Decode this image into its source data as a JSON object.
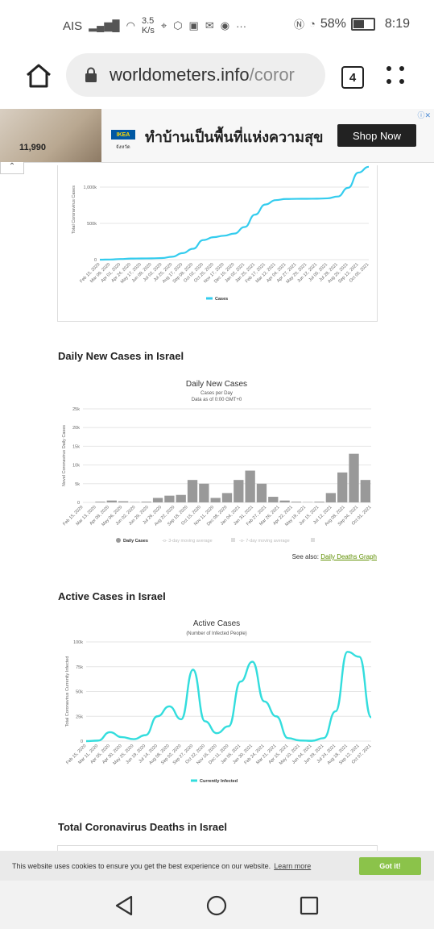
{
  "status_bar": {
    "carrier": "AIS",
    "net_speed": "3.5",
    "net_unit": "K/s",
    "battery": "58%",
    "time": "8:19"
  },
  "browser": {
    "url_host": "worldometers.info",
    "url_rest": "/coror",
    "tab_count": "4"
  },
  "ad": {
    "price": "11,990",
    "ikea_label": "IKEA",
    "ikea_sub": "จังหวัด",
    "headline": "ทำบ้านเป็นพื้นที่แห่งความสุข",
    "cta": "Shop Now"
  },
  "total_cases": {
    "chart_data": {
      "type": "line",
      "ylabel": "Total Coronavirus Cases",
      "yticks": [
        "0",
        "500k",
        "1,000k"
      ],
      "ylim": [
        0,
        1300000
      ],
      "xticks": [
        "Feb 15, 2020",
        "Mar 09, 2020",
        "Apr 01, 2020",
        "Apr 24, 2020",
        "May 17, 2020",
        "Jun 09, 2020",
        "Jul 02, 2020",
        "Jul 25, 2020",
        "Aug 17, 2020",
        "Sep 09, 2020",
        "Oct 02, 2020",
        "Oct 25, 2020",
        "Nov 17, 2020",
        "Dec 10, 2020",
        "Jan 02, 2021",
        "Jan 25, 2021",
        "Feb 17, 2021",
        "Mar 12, 2021",
        "Apr 04, 2021",
        "Apr 27, 2021",
        "May 20, 2021",
        "Jun 12, 2021",
        "Jul 05, 2021",
        "Jul 28, 2021",
        "Aug 20, 2021",
        "Sep 12, 2021",
        "Oct 05, 2021"
      ],
      "values": [
        0,
        2000,
        9000,
        15000,
        17000,
        18000,
        22000,
        40000,
        90000,
        150000,
        270000,
        310000,
        330000,
        360000,
        450000,
        620000,
        760000,
        820000,
        836000,
        838000,
        839000,
        840000,
        845000,
        870000,
        990000,
        1200000,
        1280000
      ],
      "legend": "Cases",
      "color": "#33ccee"
    }
  },
  "daily_cases": {
    "section_title": "Daily New Cases in Israel",
    "chart_data": {
      "type": "bar",
      "title": "Daily New Cases",
      "subtitle1": "Cases per Day",
      "subtitle2": "Data as of 0:00 GMT+0",
      "ylabel": "Novel Coronavirus Daily Cases",
      "yticks": [
        "0",
        "5k",
        "10k",
        "15k",
        "20k",
        "25k"
      ],
      "ylim": [
        0,
        25000
      ],
      "xticks": [
        "Feb 15, 2020",
        "Mar 13, 2020",
        "Apr 09, 2020",
        "May 06, 2020",
        "Jun 02, 2020",
        "Jun 29, 2020",
        "Jul 26, 2020",
        "Aug 22, 2020",
        "Sep 18, 2020",
        "Oct 15, 2020",
        "Nov 11, 2020",
        "Dec 08, 2020",
        "Jan 04, 2021",
        "Jan 31, 2021",
        "Feb 27, 2021",
        "Mar 26, 2021",
        "Apr 22, 2021",
        "May 19, 2021",
        "Jun 15, 2021",
        "Jul 12, 2021",
        "Aug 08, 2021",
        "Sep 04, 2021",
        "Oct 01, 2021"
      ],
      "values": [
        0,
        200,
        500,
        300,
        100,
        200,
        1200,
        1800,
        2000,
        6000,
        5000,
        1200,
        2500,
        6000,
        8500,
        5000,
        1500,
        500,
        200,
        100,
        200,
        2500,
        8000,
        13000,
        6000
      ],
      "legend": [
        "Daily Cases",
        "3-day moving average",
        "7-day moving average"
      ],
      "color": "#999999"
    },
    "see_also_label": "See also:",
    "see_also_link": "Daily Deaths Graph"
  },
  "active_cases": {
    "section_title": "Active Cases in Israel",
    "chart_data": {
      "type": "line",
      "title": "Active Cases",
      "subtitle": "(Number of Infected People)",
      "ylabel": "Total Coronavirus Currently Infected",
      "yticks": [
        "0",
        "25k",
        "50k",
        "75k",
        "100k"
      ],
      "ylim": [
        0,
        100000
      ],
      "xticks": [
        "Feb 15, 2020",
        "Mar 11, 2020",
        "Apr 05, 2020",
        "Apr 30, 2020",
        "May 25, 2020",
        "Jun 19, 2020",
        "Jul 14, 2020",
        "Aug 08, 2020",
        "Sep 02, 2020",
        "Sep 27, 2020",
        "Oct 22, 2020",
        "Nov 16, 2020",
        "Dec 11, 2020",
        "Jan 05, 2021",
        "Jan 30, 2021",
        "Feb 24, 2021",
        "Mar 21, 2021",
        "Apr 15, 2021",
        "May 10, 2021",
        "Jun 04, 2021",
        "Jun 29, 2021",
        "Jul 24, 2021",
        "Aug 18, 2021",
        "Sep 12, 2021",
        "Oct 07, 2021"
      ],
      "values": [
        0,
        500,
        9000,
        4000,
        2000,
        6000,
        25000,
        35000,
        22000,
        72000,
        20000,
        8000,
        15000,
        60000,
        80000,
        40000,
        25000,
        3000,
        600,
        300,
        3000,
        30000,
        90000,
        85000,
        24000
      ],
      "legend": "Currently Infected",
      "color": "#33dddd"
    }
  },
  "deaths": {
    "section_title": "Total Coronavirus Deaths in Israel"
  },
  "cookie": {
    "message": "This website uses cookies to ensure you get the best experience on our website.",
    "learn_more": "Learn more",
    "accept": "Got it!"
  }
}
